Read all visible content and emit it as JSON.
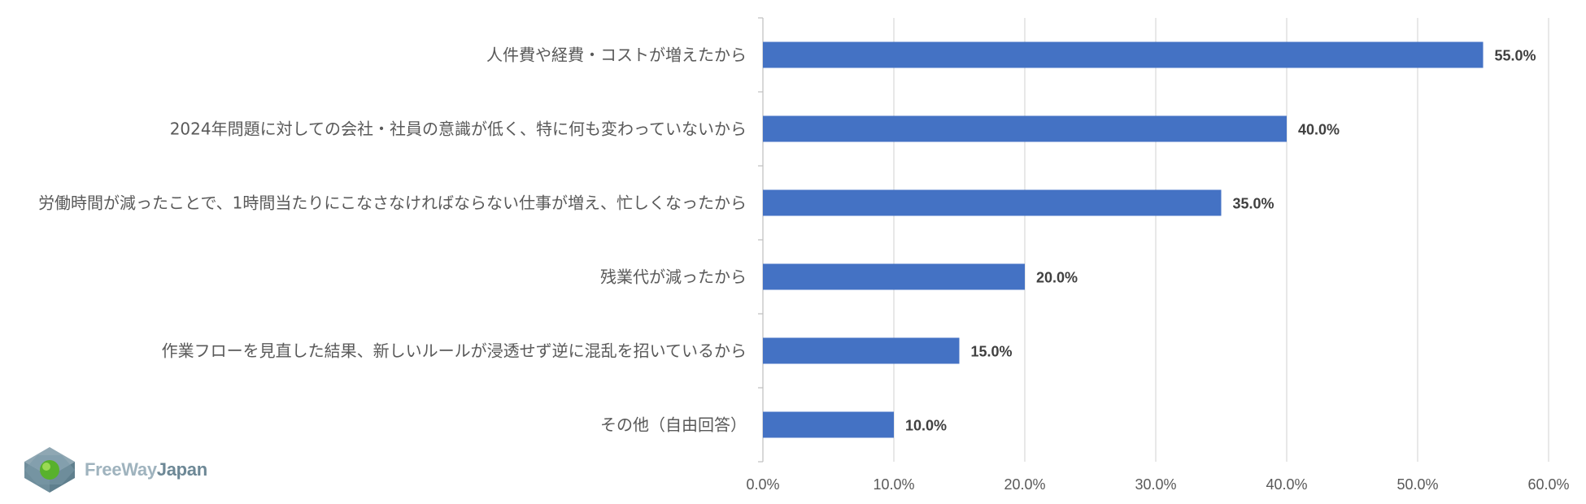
{
  "chart_data": {
    "type": "bar",
    "orientation": "horizontal",
    "categories": [
      "人件費や経費・コストが増えたから",
      "2024年問題に対しての会社・社員の意識が低く、特に何も変わっていないから",
      "労働時間が減ったことで、1時間当たりにこなさなければならない仕事が増え、忙しくなったから",
      "残業代が減ったから",
      "作業フローを見直した結果、新しいルールが浸透せず逆に混乱を招いているから",
      "その他（自由回答）"
    ],
    "values": [
      55.0,
      40.0,
      35.0,
      20.0,
      15.0,
      10.0
    ],
    "data_labels": [
      "55.0%",
      "40.0%",
      "35.0%",
      "20.0%",
      "15.0%",
      "10.0%"
    ],
    "xlim": [
      0,
      60
    ],
    "xticks": [
      0,
      10,
      20,
      30,
      40,
      50,
      60
    ],
    "xtick_labels": [
      "0.0%",
      "10.0%",
      "20.0%",
      "30.0%",
      "40.0%",
      "50.0%",
      "60.0%"
    ],
    "grid": true,
    "legend": "none",
    "bar_color": "#4472c4",
    "title": "",
    "xlabel": "",
    "ylabel": ""
  },
  "logo": {
    "text_part1": "FreeWay",
    "text_part2": "Japan"
  }
}
